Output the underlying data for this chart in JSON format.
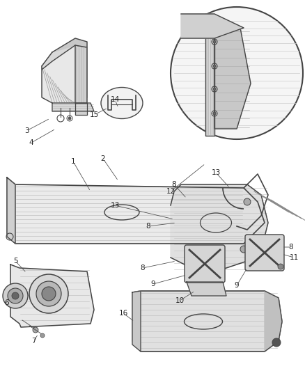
{
  "background_color": "#ffffff",
  "line_color": "#444444",
  "text_color": "#222222",
  "label_fontsize": 7.5,
  "figsize": [
    4.38,
    5.33
  ],
  "dpi": 100
}
